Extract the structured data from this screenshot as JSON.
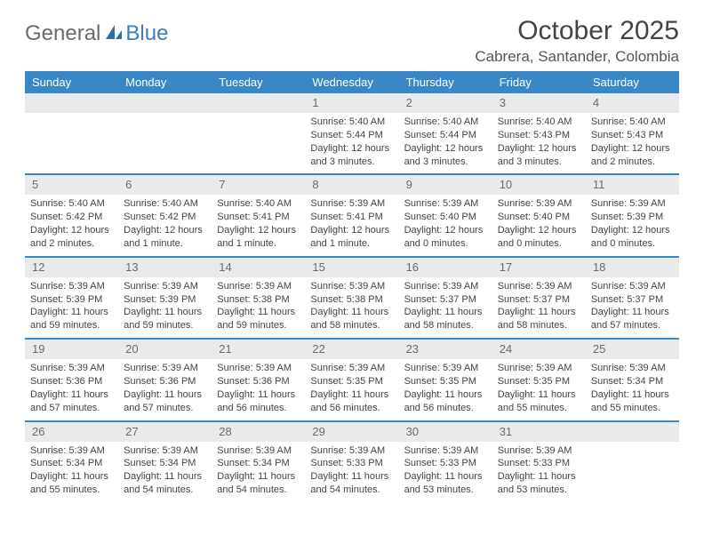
{
  "logo": {
    "part1": "General",
    "part2": "Blue"
  },
  "title": "October 2025",
  "location": "Cabrera, Santander, Colombia",
  "colors": {
    "header_bg": "#3a87c7",
    "daynum_bg": "#e9eaec",
    "rule": "#3a87c7",
    "logo_gray": "#6b6b6b",
    "logo_blue": "#3a7fc0"
  },
  "dayNames": [
    "Sunday",
    "Monday",
    "Tuesday",
    "Wednesday",
    "Thursday",
    "Friday",
    "Saturday"
  ],
  "weeks": [
    [
      null,
      null,
      null,
      {
        "n": "1",
        "sr": "Sunrise: 5:40 AM",
        "ss": "Sunset: 5:44 PM",
        "dl": "Daylight: 12 hours and 3 minutes."
      },
      {
        "n": "2",
        "sr": "Sunrise: 5:40 AM",
        "ss": "Sunset: 5:44 PM",
        "dl": "Daylight: 12 hours and 3 minutes."
      },
      {
        "n": "3",
        "sr": "Sunrise: 5:40 AM",
        "ss": "Sunset: 5:43 PM",
        "dl": "Daylight: 12 hours and 3 minutes."
      },
      {
        "n": "4",
        "sr": "Sunrise: 5:40 AM",
        "ss": "Sunset: 5:43 PM",
        "dl": "Daylight: 12 hours and 2 minutes."
      }
    ],
    [
      {
        "n": "5",
        "sr": "Sunrise: 5:40 AM",
        "ss": "Sunset: 5:42 PM",
        "dl": "Daylight: 12 hours and 2 minutes."
      },
      {
        "n": "6",
        "sr": "Sunrise: 5:40 AM",
        "ss": "Sunset: 5:42 PM",
        "dl": "Daylight: 12 hours and 1 minute."
      },
      {
        "n": "7",
        "sr": "Sunrise: 5:40 AM",
        "ss": "Sunset: 5:41 PM",
        "dl": "Daylight: 12 hours and 1 minute."
      },
      {
        "n": "8",
        "sr": "Sunrise: 5:39 AM",
        "ss": "Sunset: 5:41 PM",
        "dl": "Daylight: 12 hours and 1 minute."
      },
      {
        "n": "9",
        "sr": "Sunrise: 5:39 AM",
        "ss": "Sunset: 5:40 PM",
        "dl": "Daylight: 12 hours and 0 minutes."
      },
      {
        "n": "10",
        "sr": "Sunrise: 5:39 AM",
        "ss": "Sunset: 5:40 PM",
        "dl": "Daylight: 12 hours and 0 minutes."
      },
      {
        "n": "11",
        "sr": "Sunrise: 5:39 AM",
        "ss": "Sunset: 5:39 PM",
        "dl": "Daylight: 12 hours and 0 minutes."
      }
    ],
    [
      {
        "n": "12",
        "sr": "Sunrise: 5:39 AM",
        "ss": "Sunset: 5:39 PM",
        "dl": "Daylight: 11 hours and 59 minutes."
      },
      {
        "n": "13",
        "sr": "Sunrise: 5:39 AM",
        "ss": "Sunset: 5:39 PM",
        "dl": "Daylight: 11 hours and 59 minutes."
      },
      {
        "n": "14",
        "sr": "Sunrise: 5:39 AM",
        "ss": "Sunset: 5:38 PM",
        "dl": "Daylight: 11 hours and 59 minutes."
      },
      {
        "n": "15",
        "sr": "Sunrise: 5:39 AM",
        "ss": "Sunset: 5:38 PM",
        "dl": "Daylight: 11 hours and 58 minutes."
      },
      {
        "n": "16",
        "sr": "Sunrise: 5:39 AM",
        "ss": "Sunset: 5:37 PM",
        "dl": "Daylight: 11 hours and 58 minutes."
      },
      {
        "n": "17",
        "sr": "Sunrise: 5:39 AM",
        "ss": "Sunset: 5:37 PM",
        "dl": "Daylight: 11 hours and 58 minutes."
      },
      {
        "n": "18",
        "sr": "Sunrise: 5:39 AM",
        "ss": "Sunset: 5:37 PM",
        "dl": "Daylight: 11 hours and 57 minutes."
      }
    ],
    [
      {
        "n": "19",
        "sr": "Sunrise: 5:39 AM",
        "ss": "Sunset: 5:36 PM",
        "dl": "Daylight: 11 hours and 57 minutes."
      },
      {
        "n": "20",
        "sr": "Sunrise: 5:39 AM",
        "ss": "Sunset: 5:36 PM",
        "dl": "Daylight: 11 hours and 57 minutes."
      },
      {
        "n": "21",
        "sr": "Sunrise: 5:39 AM",
        "ss": "Sunset: 5:36 PM",
        "dl": "Daylight: 11 hours and 56 minutes."
      },
      {
        "n": "22",
        "sr": "Sunrise: 5:39 AM",
        "ss": "Sunset: 5:35 PM",
        "dl": "Daylight: 11 hours and 56 minutes."
      },
      {
        "n": "23",
        "sr": "Sunrise: 5:39 AM",
        "ss": "Sunset: 5:35 PM",
        "dl": "Daylight: 11 hours and 56 minutes."
      },
      {
        "n": "24",
        "sr": "Sunrise: 5:39 AM",
        "ss": "Sunset: 5:35 PM",
        "dl": "Daylight: 11 hours and 55 minutes."
      },
      {
        "n": "25",
        "sr": "Sunrise: 5:39 AM",
        "ss": "Sunset: 5:34 PM",
        "dl": "Daylight: 11 hours and 55 minutes."
      }
    ],
    [
      {
        "n": "26",
        "sr": "Sunrise: 5:39 AM",
        "ss": "Sunset: 5:34 PM",
        "dl": "Daylight: 11 hours and 55 minutes."
      },
      {
        "n": "27",
        "sr": "Sunrise: 5:39 AM",
        "ss": "Sunset: 5:34 PM",
        "dl": "Daylight: 11 hours and 54 minutes."
      },
      {
        "n": "28",
        "sr": "Sunrise: 5:39 AM",
        "ss": "Sunset: 5:34 PM",
        "dl": "Daylight: 11 hours and 54 minutes."
      },
      {
        "n": "29",
        "sr": "Sunrise: 5:39 AM",
        "ss": "Sunset: 5:33 PM",
        "dl": "Daylight: 11 hours and 54 minutes."
      },
      {
        "n": "30",
        "sr": "Sunrise: 5:39 AM",
        "ss": "Sunset: 5:33 PM",
        "dl": "Daylight: 11 hours and 53 minutes."
      },
      {
        "n": "31",
        "sr": "Sunrise: 5:39 AM",
        "ss": "Sunset: 5:33 PM",
        "dl": "Daylight: 11 hours and 53 minutes."
      },
      null
    ]
  ]
}
